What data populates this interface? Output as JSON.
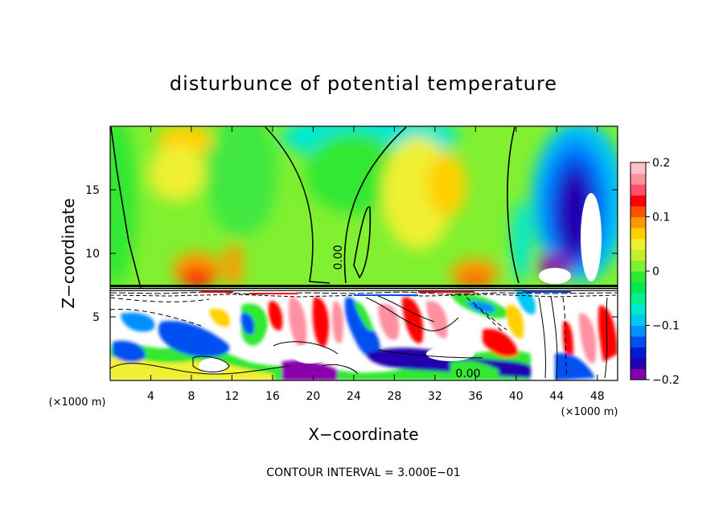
{
  "chart_data": {
    "type": "heatmap",
    "title": "disturbunce of potential temperature",
    "xlabel": "X−coordinate",
    "ylabel": "Z−coordinate",
    "x_units": "(×1000 m)",
    "x_units_right": "(×1000 m)",
    "xlim": [
      0,
      50
    ],
    "ylim": [
      0,
      20
    ],
    "x_ticks": [
      4,
      8,
      12,
      16,
      20,
      24,
      28,
      32,
      36,
      40,
      44,
      48
    ],
    "y_ticks": [
      5,
      10,
      15
    ],
    "x_tick_labels": [
      "4",
      "8",
      "12",
      "16",
      "20",
      "24",
      "28",
      "32",
      "36",
      "40",
      "44",
      "48"
    ],
    "y_tick_labels": [
      "5",
      "10",
      "15"
    ],
    "colorbar": {
      "min": -0.2,
      "max": 0.2,
      "tick_values": [
        0.2,
        0.1,
        0,
        -0.1,
        -0.2
      ],
      "tick_labels": [
        "0.2",
        "0.1",
        "0",
        "−0.1",
        "−0.2"
      ],
      "colors": [
        "#8800aa",
        "#2000b0",
        "#0018d8",
        "#0050f0",
        "#0090ff",
        "#00c8f0",
        "#00e8d0",
        "#00f090",
        "#00e850",
        "#30e830",
        "#80f030",
        "#c0f030",
        "#f0f030",
        "#ffd000",
        "#ff9900",
        "#ff5000",
        "#ff0000",
        "#ff5070",
        "#ff90a0",
        "#ffc0c8"
      ]
    },
    "contour_labels": [
      {
        "text": "0.00",
        "x": 23.0,
        "z": 9.5
      },
      {
        "text": "0.00",
        "x": 35.3,
        "z": 0.6
      }
    ],
    "annotation": "CONTOUR INTERVAL = 3.000E−01"
  }
}
